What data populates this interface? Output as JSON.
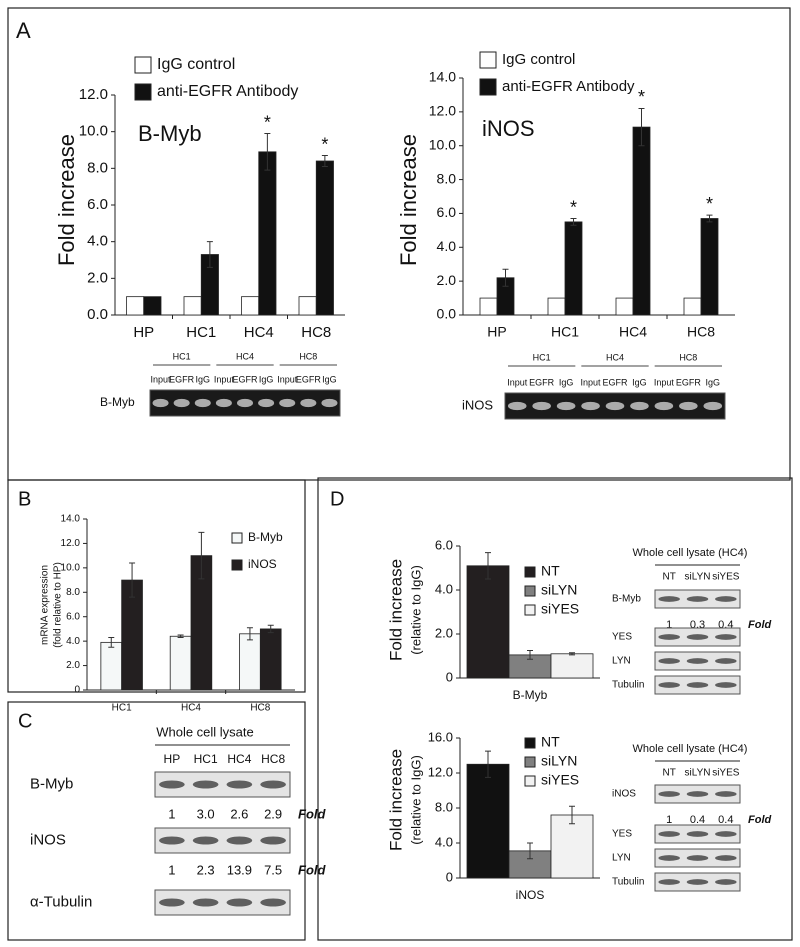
{
  "panel_labels": [
    "A",
    "B",
    "C",
    "D"
  ],
  "chart_data": [
    {
      "type": "bar",
      "title": "B-Myb",
      "y_label": "Fold increase",
      "categories": [
        "HP",
        "HC1",
        "HC4",
        "HC8"
      ],
      "series": [
        {
          "name": "IgG control",
          "color": "#ffffff",
          "values": [
            1,
            1,
            1,
            1
          ]
        },
        {
          "name": "anti-EGFR Antibody",
          "color": "#111111",
          "values": [
            1,
            3.3,
            8.9,
            8.4
          ],
          "errors": [
            null,
            0.7,
            1.0,
            0.3
          ],
          "markers": [
            null,
            null,
            "*",
            "*"
          ]
        }
      ],
      "ylim": [
        0,
        12
      ],
      "yticks": [
        {
          "value": 0,
          "label": "0.0"
        },
        {
          "value": 2,
          "label": "2.0"
        },
        {
          "value": 4,
          "label": "4.0"
        },
        {
          "value": 6,
          "label": "6.0"
        },
        {
          "value": 8,
          "label": "8.0"
        },
        {
          "value": 10,
          "label": "10.0"
        },
        {
          "value": 12,
          "label": "12.0"
        }
      ]
    },
    {
      "type": "bar",
      "title": "iNOS",
      "y_label": "Fold increase",
      "categories": [
        "HP",
        "HC1",
        "HC4",
        "HC8"
      ],
      "series": [
        {
          "name": "IgG control",
          "color": "#ffffff",
          "values": [
            1,
            1,
            1,
            1
          ]
        },
        {
          "name": "anti-EGFR Antibody",
          "color": "#111111",
          "values": [
            2.2,
            5.5,
            11.1,
            5.7
          ],
          "errors": [
            0.5,
            0.2,
            1.1,
            0.2
          ],
          "markers": [
            null,
            "*",
            "*",
            "*"
          ]
        }
      ],
      "ylim": [
        0,
        14
      ],
      "yticks": [
        {
          "value": 0,
          "label": "0.0"
        },
        {
          "value": 2,
          "label": "2.0"
        },
        {
          "value": 4,
          "label": "4.0"
        },
        {
          "value": 6,
          "label": "6.0"
        },
        {
          "value": 8,
          "label": "8.0"
        },
        {
          "value": 10,
          "label": "10.0"
        },
        {
          "value": 12,
          "label": "12.0"
        },
        {
          "value": 14,
          "label": "14.0"
        }
      ]
    },
    {
      "type": "bar",
      "y_label": "mRNA expression",
      "y_label_sub": "(fold relative to HP)",
      "categories": [
        "HC1",
        "HC4",
        "HC8"
      ],
      "series": [
        {
          "name": "B-Myb",
          "color": "#f5f8f8",
          "values": [
            3.9,
            4.4,
            4.6
          ],
          "errors": [
            0.4,
            0.1,
            0.5
          ]
        },
        {
          "name": "iNOS",
          "color": "#231f20",
          "values": [
            9.0,
            11.0,
            5.0
          ],
          "errors": [
            1.4,
            1.9,
            0.3
          ]
        }
      ],
      "ylim": [
        0,
        14
      ],
      "yticks": [
        {
          "value": 0,
          "label": "0"
        },
        {
          "value": 2,
          "label": "2.0"
        },
        {
          "value": 4,
          "label": "4.0"
        },
        {
          "value": 6,
          "label": "6.0"
        },
        {
          "value": 8,
          "label": "8.0"
        },
        {
          "value": 10,
          "label": "10.0"
        },
        {
          "value": 12,
          "label": "12.0"
        },
        {
          "value": 14,
          "label": "14.0"
        }
      ]
    },
    {
      "type": "bar",
      "y_label": "Fold increase",
      "y_label_sub": "(relative to IgG)",
      "categories": [
        "B-Myb"
      ],
      "series": [
        {
          "name": "NT",
          "color": "#231f20",
          "values": [
            5.1
          ],
          "errors": [
            0.6
          ]
        },
        {
          "name": "siLYN",
          "color": "#808080",
          "values": [
            1.05
          ],
          "errors": [
            0.2
          ]
        },
        {
          "name": "siYES",
          "color": "#f2f2f2",
          "values": [
            1.1
          ],
          "errors": [
            0.05
          ]
        }
      ],
      "ylim": [
        0,
        6
      ],
      "yticks": [
        {
          "value": 0,
          "label": "0"
        },
        {
          "value": 2,
          "label": "2.0"
        },
        {
          "value": 4,
          "label": "4.0"
        },
        {
          "value": 6,
          "label": "6.0"
        }
      ]
    },
    {
      "type": "bar",
      "y_label": "Fold increase",
      "y_label_sub": "(relative to IgG)",
      "categories": [
        "iNOS"
      ],
      "series": [
        {
          "name": "NT",
          "color": "#111111",
          "values": [
            13.0
          ],
          "errors": [
            1.5
          ]
        },
        {
          "name": "siLYN",
          "color": "#808080",
          "values": [
            3.1
          ],
          "errors": [
            0.9
          ]
        },
        {
          "name": "siYES",
          "color": "#f2f2f2",
          "values": [
            7.2
          ],
          "errors": [
            1.0
          ]
        }
      ],
      "ylim": [
        0,
        16
      ],
      "yticks": [
        {
          "value": 0,
          "label": "0"
        },
        {
          "value": 4,
          "label": "4.0"
        },
        {
          "value": 8,
          "label": "8.0"
        },
        {
          "value": 12,
          "label": "12.0"
        },
        {
          "value": 16,
          "label": "16.0"
        }
      ]
    }
  ],
  "blots": [
    {
      "groups": [
        "HC1",
        "HC4",
        "HC8"
      ],
      "lanes": [
        "Input",
        "EGFR",
        "IgG",
        "Input",
        "EGFR",
        "IgG",
        "Input",
        "EGFR",
        "IgG"
      ],
      "rows": [
        {
          "name": "B-Myb"
        }
      ]
    },
    {
      "groups": [
        "HC1",
        "HC4",
        "HC8"
      ],
      "lanes": [
        "Input",
        "EGFR",
        "IgG",
        "Input",
        "EGFR",
        "IgG",
        "Input",
        "EGFR",
        "IgG"
      ],
      "rows": [
        {
          "name": "iNOS"
        }
      ]
    },
    {
      "title": "Whole cell lysate",
      "lanes": [
        "HP",
        "HC1",
        "HC4",
        "HC8"
      ],
      "rows": [
        {
          "name": "B-Myb",
          "fold": [
            "1",
            "3.0",
            "2.6",
            "2.9"
          ],
          "fold_label": "Fold"
        },
        {
          "name": "iNOS",
          "fold": [
            "1",
            "2.3",
            "13.9",
            "7.5"
          ],
          "fold_label": "Fold"
        },
        {
          "name": "α-Tubulin"
        }
      ]
    },
    {
      "title": "Whole cell lysate (HC4)",
      "lanes": [
        "NT",
        "siLYN",
        "siYES"
      ],
      "rows": [
        {
          "name": "B-Myb",
          "fold": [
            "1",
            "0.3",
            "0.4"
          ],
          "fold_label": "Fold"
        },
        {
          "name": "YES"
        },
        {
          "name": "LYN"
        },
        {
          "name": "Tubulin"
        }
      ]
    },
    {
      "title": "Whole cell lysate (HC4)",
      "lanes": [
        "NT",
        "siLYN",
        "siYES"
      ],
      "rows": [
        {
          "name": "iNOS",
          "fold": [
            "1",
            "0.4",
            "0.4"
          ],
          "fold_label": "Fold"
        },
        {
          "name": "YES"
        },
        {
          "name": "LYN"
        },
        {
          "name": "Tubulin"
        }
      ]
    }
  ]
}
